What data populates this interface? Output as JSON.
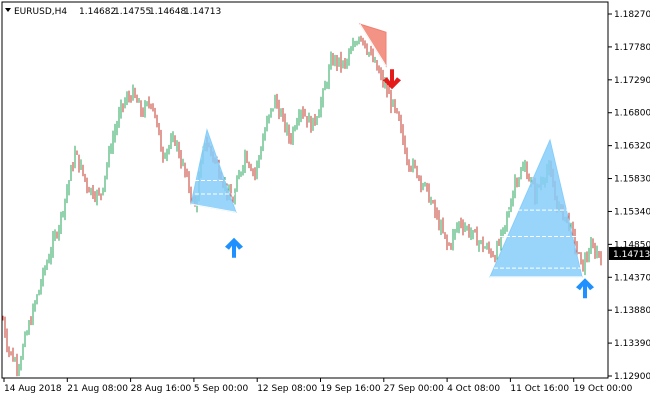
{
  "header": {
    "symbol": "EURUSD,H4",
    "open": "1.14682",
    "high": "1.14755",
    "low": "1.14648",
    "close": "1.14713"
  },
  "colors": {
    "bull": "#26a65b",
    "bear": "#c0392b",
    "triangle_blue": "#87cefa",
    "triangle_red": "#f08070",
    "arrow_up": "#1e90ff",
    "arrow_down": "#e31b1b",
    "frame": "#000000",
    "price_tag_bg": "#000000",
    "price_tag_text": "#ffffff"
  },
  "chart_data": {
    "type": "candlestick",
    "ylim": [
      1.129,
      1.1827
    ],
    "y_ticks": [
      "1.18270",
      "1.17780",
      "1.17290",
      "1.16800",
      "1.16320",
      "1.15830",
      "1.15340",
      "1.14850",
      "1.14370",
      "1.13880",
      "1.13390",
      "1.12900"
    ],
    "x_ticks": [
      "14 Aug 2018",
      "21 Aug 08:00",
      "28 Aug 16:00",
      "5 Sep 00:00",
      "12 Sep 08:00",
      "19 Sep 16:00",
      "27 Sep 00:00",
      "4 Oct 08:00",
      "11 Oct 16:00",
      "19 Oct 00:00"
    ],
    "current_price": "1.14713",
    "path": [
      [
        0,
        1.14
      ],
      [
        8,
        1.133
      ],
      [
        18,
        1.1305
      ],
      [
        30,
        1.137
      ],
      [
        45,
        1.145
      ],
      [
        60,
        1.152
      ],
      [
        75,
        1.162
      ],
      [
        88,
        1.157
      ],
      [
        100,
        1.1555
      ],
      [
        112,
        1.164
      ],
      [
        122,
        1.169
      ],
      [
        132,
        1.171
      ],
      [
        142,
        1.168
      ],
      [
        152,
        1.17
      ],
      [
        162,
        1.162
      ],
      [
        175,
        1.164
      ],
      [
        185,
        1.159
      ],
      [
        195,
        1.154
      ],
      [
        205,
        1.164
      ],
      [
        218,
        1.16
      ],
      [
        232,
        1.1545
      ],
      [
        245,
        1.162
      ],
      [
        255,
        1.159
      ],
      [
        265,
        1.1655
      ],
      [
        275,
        1.17
      ],
      [
        290,
        1.164
      ],
      [
        300,
        1.169
      ],
      [
        312,
        1.166
      ],
      [
        322,
        1.17
      ],
      [
        332,
        1.176
      ],
      [
        345,
        1.175
      ],
      [
        360,
        1.18
      ],
      [
        372,
        1.176
      ],
      [
        385,
        1.172
      ],
      [
        398,
        1.167
      ],
      [
        408,
        1.161
      ],
      [
        418,
        1.159
      ],
      [
        428,
        1.156
      ],
      [
        438,
        1.152
      ],
      [
        448,
        1.148
      ],
      [
        460,
        1.152
      ],
      [
        472,
        1.15
      ],
      [
        485,
        1.148
      ],
      [
        495,
        1.147
      ],
      [
        505,
        1.151
      ],
      [
        515,
        1.158
      ],
      [
        525,
        1.16
      ],
      [
        535,
        1.156
      ],
      [
        548,
        1.16
      ],
      [
        558,
        1.154
      ],
      [
        568,
        1.152
      ],
      [
        576,
        1.148
      ],
      [
        582,
        1.145
      ],
      [
        590,
        1.148
      ],
      [
        600,
        1.1471
      ]
    ],
    "triangles": [
      {
        "color": "blue",
        "points": [
          [
            191,
            1.1545
          ],
          [
            207,
            1.1655
          ],
          [
            236,
            1.1533
          ]
        ],
        "levels": [
          1.158,
          1.156
        ]
      },
      {
        "color": "red",
        "points": [
          [
            360,
            1.1812
          ],
          [
            386,
            1.18
          ],
          [
            386,
            1.175
          ]
        ],
        "levels": []
      },
      {
        "color": "blue",
        "points": [
          [
            490,
            1.1437
          ],
          [
            550,
            1.164
          ],
          [
            582,
            1.1437
          ]
        ],
        "levels": [
          1.1536,
          1.1497,
          1.145
        ]
      }
    ],
    "arrows": [
      {
        "direction": "up",
        "x": 234,
        "price": 1.1495
      },
      {
        "direction": "down",
        "x": 392,
        "price": 1.1745
      },
      {
        "direction": "up",
        "x": 585,
        "price": 1.1435
      }
    ]
  }
}
